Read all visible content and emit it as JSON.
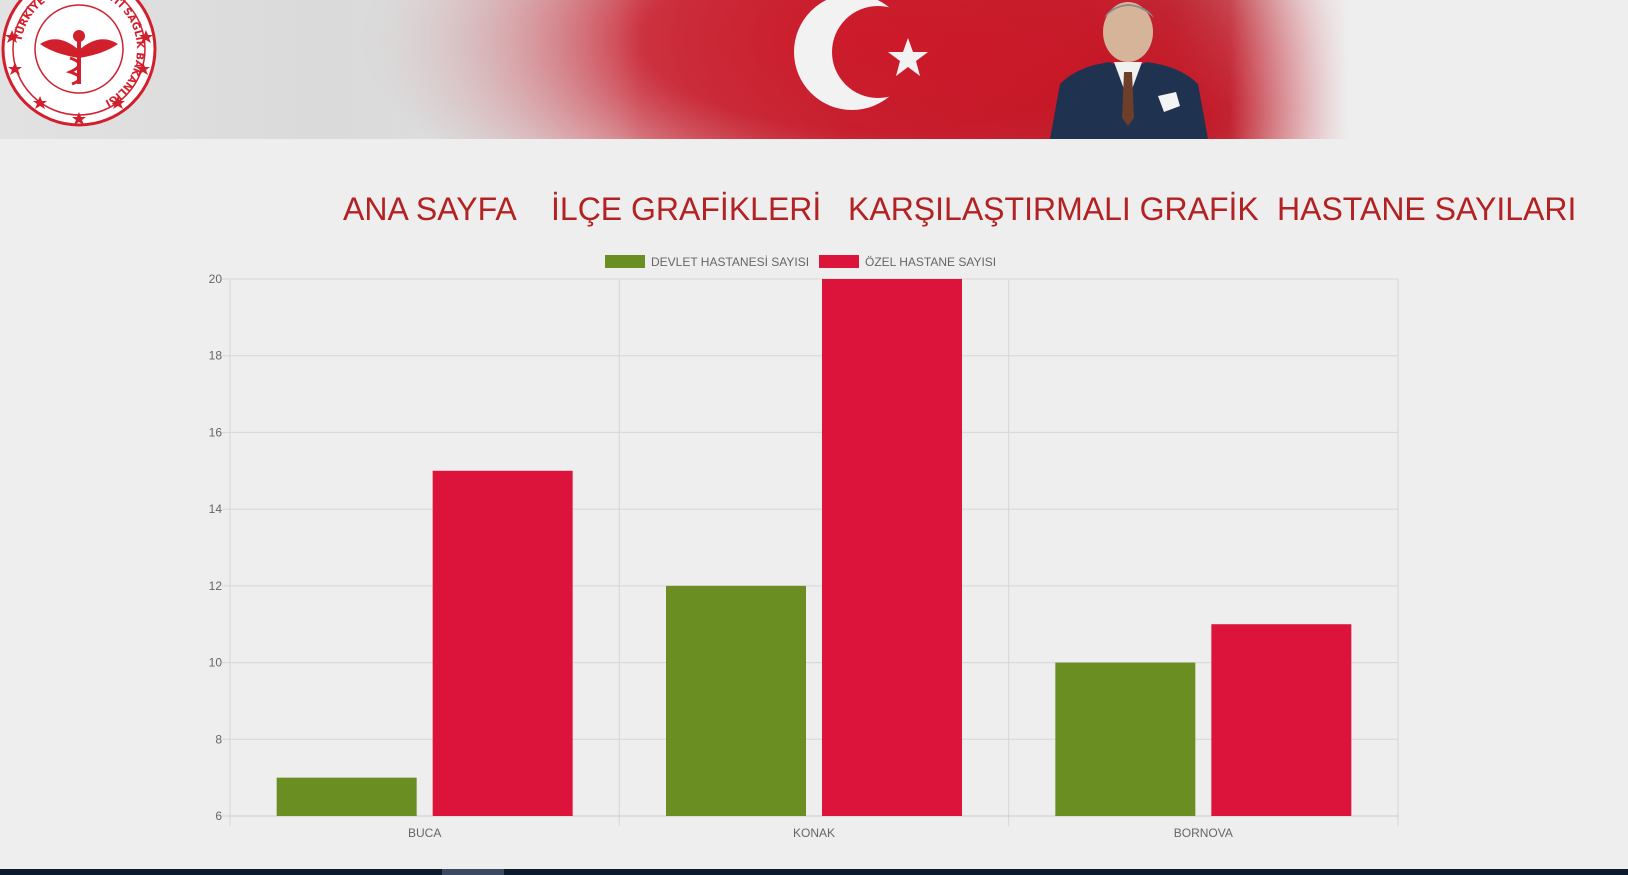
{
  "header": {
    "logo_icon": "ministry-of-health-seal-icon",
    "logo_text": "TÜRKİYE CUMHURİYETİ SAĞLIK BAKANLIĞI",
    "accent_color": "#cd1626"
  },
  "nav": {
    "items": [
      {
        "label": "ANA SAYFA"
      },
      {
        "label": "İLÇE GRAFİKLERİ"
      },
      {
        "label": "KARŞILAŞTIRMALI GRAFİK"
      },
      {
        "label": "HASTANE SAYILARI"
      }
    ],
    "color": "#b22222"
  },
  "chart_data": {
    "type": "bar",
    "categories": [
      "BUCA",
      "KONAK",
      "BORNOVA"
    ],
    "series": [
      {
        "name": "DEVLET HASTANESİ SAYISI",
        "values": [
          7,
          12,
          10
        ],
        "color": "#6b8e23"
      },
      {
        "name": "ÖZEL HASTANE SAYISI",
        "values": [
          15,
          20,
          11
        ],
        "color": "#dc143c"
      }
    ],
    "title": "",
    "xlabel": "",
    "ylabel": "",
    "ylim": [
      6,
      20
    ],
    "yticks": [
      6,
      8,
      10,
      12,
      14,
      16,
      18,
      20
    ],
    "grid": true,
    "legend_position": "top-center"
  }
}
